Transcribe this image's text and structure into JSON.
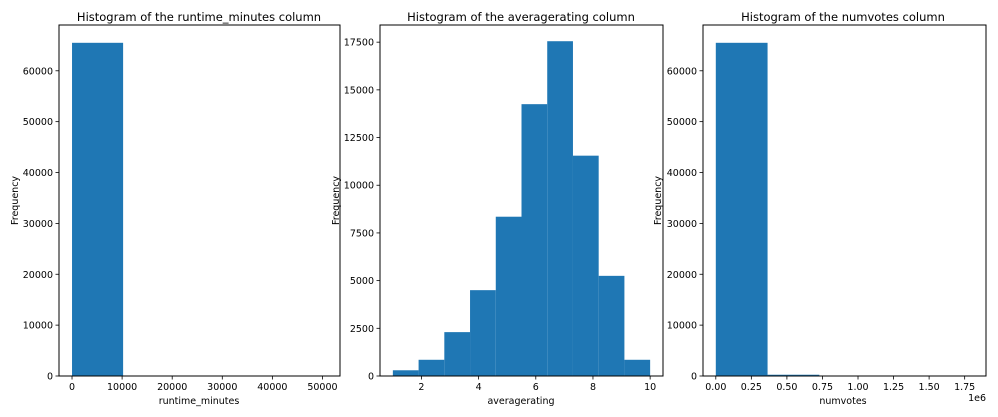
{
  "chart_data": [
    {
      "type": "bar",
      "title": "Histogram of the runtime_minutes column",
      "xlabel": "runtime_minutes",
      "ylabel": "Frequency",
      "xlim": [
        -2600,
        53500
      ],
      "ylim": [
        0,
        69000
      ],
      "xticks": [
        0,
        10000,
        20000,
        30000,
        40000,
        50000
      ],
      "xtick_labels": [
        "0",
        "10000",
        "20000",
        "30000",
        "40000",
        "50000"
      ],
      "yticks": [
        0,
        10000,
        20000,
        30000,
        40000,
        50000,
        60000
      ],
      "ytick_labels": [
        "0",
        "10000",
        "20000",
        "30000",
        "40000",
        "50000",
        "60000"
      ],
      "offset_text": "",
      "color": "#1f77b4",
      "bins": [
        {
          "x0": 0,
          "x1": 10200,
          "count": 65500
        },
        {
          "x0": 10200,
          "x1": 20400,
          "count": 0
        },
        {
          "x0": 20400,
          "x1": 30600,
          "count": 0
        },
        {
          "x0": 30600,
          "x1": 40800,
          "count": 0
        },
        {
          "x0": 40800,
          "x1": 51000,
          "count": 1
        }
      ]
    },
    {
      "type": "bar",
      "title": "Histogram of the averagerating column",
      "xlabel": "averagerating",
      "ylabel": "Frequency",
      "xlim": [
        0.55,
        10.45
      ],
      "ylim": [
        0,
        18400
      ],
      "xticks": [
        2,
        4,
        6,
        8,
        10
      ],
      "xtick_labels": [
        "2",
        "4",
        "6",
        "8",
        "10"
      ],
      "yticks": [
        0,
        2500,
        5000,
        7500,
        10000,
        12500,
        15000,
        17500
      ],
      "ytick_labels": [
        "0",
        "2500",
        "5000",
        "7500",
        "10000",
        "12500",
        "15000",
        "17500"
      ],
      "offset_text": "",
      "color": "#1f77b4",
      "bins": [
        {
          "x0": 1.0,
          "x1": 1.9,
          "count": 300
        },
        {
          "x0": 1.9,
          "x1": 2.8,
          "count": 850
        },
        {
          "x0": 2.8,
          "x1": 3.7,
          "count": 2300
        },
        {
          "x0": 3.7,
          "x1": 4.6,
          "count": 4500
        },
        {
          "x0": 4.6,
          "x1": 5.5,
          "count": 8350
        },
        {
          "x0": 5.5,
          "x1": 6.4,
          "count": 14250
        },
        {
          "x0": 6.4,
          "x1": 7.3,
          "count": 17550
        },
        {
          "x0": 7.3,
          "x1": 8.2,
          "count": 11550
        },
        {
          "x0": 8.2,
          "x1": 9.1,
          "count": 5250
        },
        {
          "x0": 9.1,
          "x1": 10.0,
          "count": 850
        }
      ]
    },
    {
      "type": "bar",
      "title": "Histogram of the numvotes column",
      "xlabel": "numvotes",
      "ylabel": "Frequency",
      "xlim": [
        -0.09,
        1.9
      ],
      "ylim": [
        0,
        69000
      ],
      "xticks": [
        0,
        0.25,
        0.5,
        0.75,
        1.0,
        1.25,
        1.5,
        1.75
      ],
      "xtick_labels": [
        "0.00",
        "0.25",
        "0.50",
        "0.75",
        "1.00",
        "1.25",
        "1.50",
        "1.75"
      ],
      "yticks": [
        0,
        10000,
        20000,
        30000,
        40000,
        50000,
        60000
      ],
      "ytick_labels": [
        "0",
        "10000",
        "20000",
        "30000",
        "40000",
        "50000",
        "60000"
      ],
      "offset_text": "1e6",
      "color": "#1f77b4",
      "bins": [
        {
          "x0": 0,
          "x1": 0.364,
          "count": 65500
        },
        {
          "x0": 0.364,
          "x1": 0.728,
          "count": 250
        },
        {
          "x0": 0.728,
          "x1": 1.092,
          "count": 30
        },
        {
          "x0": 1.092,
          "x1": 1.456,
          "count": 8
        },
        {
          "x0": 1.456,
          "x1": 1.82,
          "count": 3
        }
      ]
    }
  ]
}
